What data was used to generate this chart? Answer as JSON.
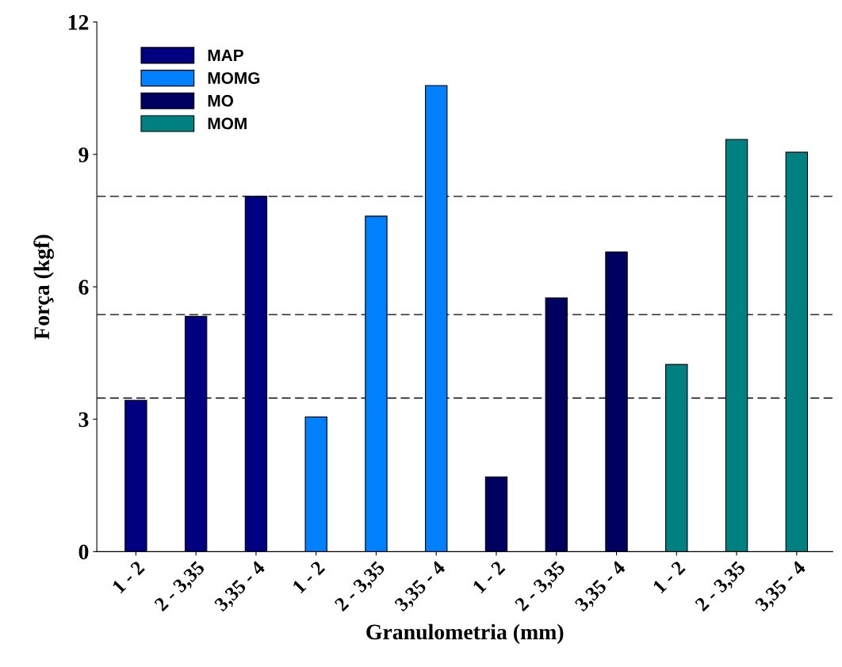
{
  "chart_data": {
    "type": "bar",
    "xlabel": "Granulometria (mm)",
    "ylabel": "Força (kgf)",
    "categories": [
      "1 - 2",
      "2 - 3,35",
      "3,35 - 4",
      "1 - 2",
      "2 - 3,35",
      "3,35 - 4",
      "1 - 2",
      "2 - 3,35",
      "3,35 - 4",
      "1 - 2",
      "2 - 3,35",
      "3,35 - 4"
    ],
    "series": [
      {
        "name": "MAP",
        "color": "#000080",
        "values": [
          3.43,
          5.33,
          8.05,
          null,
          null,
          null,
          null,
          null,
          null,
          null,
          null,
          null
        ]
      },
      {
        "name": "MOMG",
        "color": "#0080ff",
        "values": [
          null,
          null,
          null,
          3.05,
          7.6,
          10.56,
          null,
          null,
          null,
          null,
          null,
          null
        ]
      },
      {
        "name": "MO",
        "color": "#000060",
        "values": [
          null,
          null,
          null,
          null,
          null,
          null,
          1.69,
          5.75,
          6.79,
          null,
          null,
          null
        ]
      },
      {
        "name": "MOM",
        "color": "#008080",
        "values": [
          null,
          null,
          null,
          null,
          null,
          null,
          null,
          null,
          null,
          4.24,
          9.34,
          9.05
        ]
      }
    ],
    "ylim": [
      0,
      12
    ],
    "yticks": [
      0,
      3,
      6,
      9,
      12
    ],
    "grid": false,
    "legend": "top left",
    "ref_lines": [
      {
        "axis": "y",
        "value": 3.48,
        "color": "#000000",
        "line_style": "dashed"
      },
      {
        "axis": "y",
        "value": 5.37,
        "color": "#000000",
        "line_style": "dashed"
      },
      {
        "axis": "y",
        "value": 8.05,
        "color": "#000000",
        "line_style": "dashed"
      }
    ]
  }
}
